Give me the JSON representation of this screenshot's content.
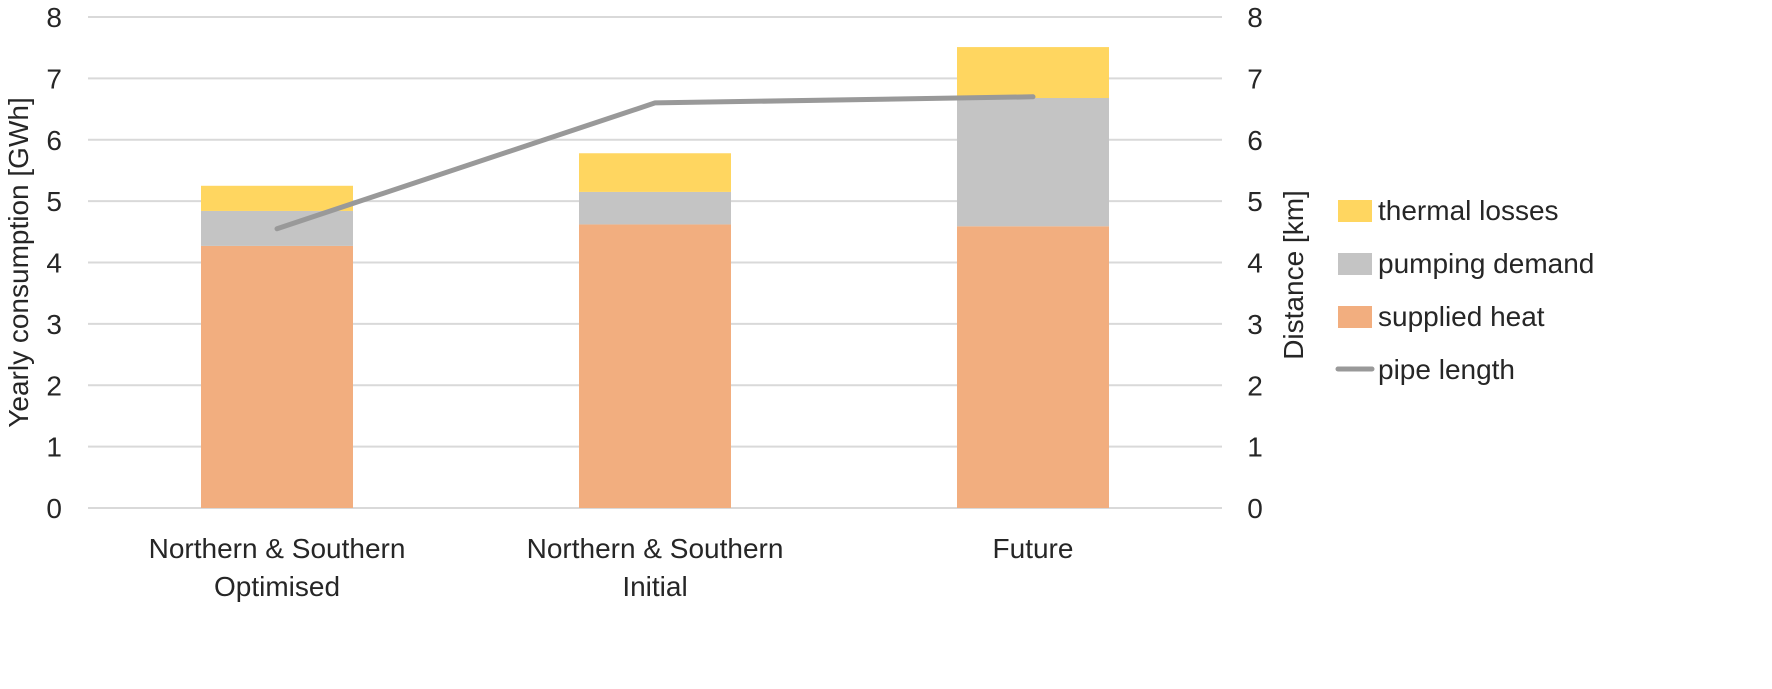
{
  "chart_data": {
    "type": "bar",
    "stacked": true,
    "categories": [
      [
        "Northern & Southern",
        "Optimised"
      ],
      [
        "Northern & Southern",
        "Initial"
      ],
      [
        "Future"
      ]
    ],
    "series": [
      {
        "name": "supplied heat",
        "kind": "bar",
        "axis": "left",
        "color": "#F2AE7F",
        "values": [
          4.27,
          4.62,
          4.59
        ]
      },
      {
        "name": "pumping demand",
        "kind": "bar",
        "axis": "left",
        "color": "#C4C4C4",
        "values": [
          0.57,
          0.53,
          2.09
        ]
      },
      {
        "name": "thermal losses",
        "kind": "bar",
        "axis": "left",
        "color": "#FFD660",
        "values": [
          0.41,
          0.63,
          0.83
        ]
      },
      {
        "name": "pipe length",
        "kind": "line",
        "axis": "right",
        "color": "#999999",
        "values": [
          4.55,
          6.6,
          6.7
        ]
      }
    ],
    "ylabel": "Yearly consumption [GWh]",
    "y2label": "Distance [km]",
    "ylim": [
      0,
      8
    ],
    "y2lim": [
      0,
      8
    ],
    "yticks": [
      "0",
      "1",
      "2",
      "3",
      "4",
      "5",
      "6",
      "7",
      "8"
    ],
    "y2ticks": [
      "0",
      "1",
      "2",
      "3",
      "4",
      "5",
      "6",
      "7",
      "8"
    ],
    "grid": true,
    "gridColor": "#D9D9D9",
    "legend": {
      "position": "right",
      "order": [
        "thermal losses",
        "pumping demand",
        "supplied heat",
        "pipe length"
      ]
    }
  }
}
